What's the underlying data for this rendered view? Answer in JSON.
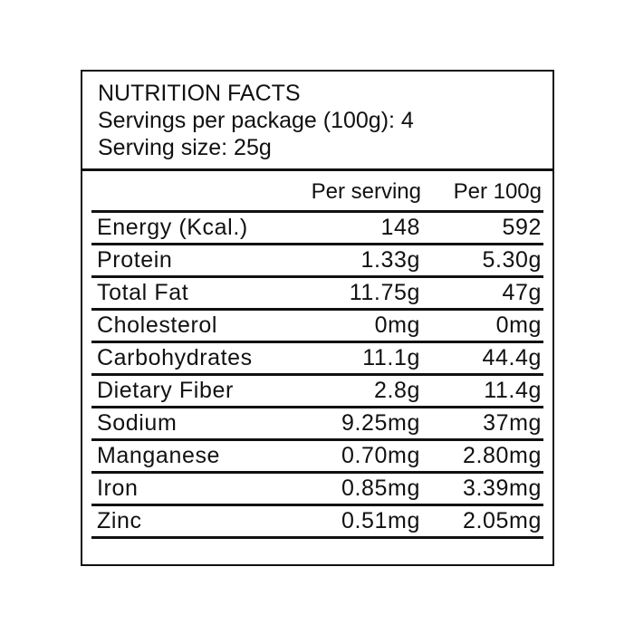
{
  "label": {
    "title": "NUTRITION FACTS",
    "servings_per_package": "Servings per package (100g): 4",
    "serving_size": "Serving size: 25g",
    "columns": [
      "Per serving",
      "Per 100g"
    ],
    "rows": [
      {
        "name": "Energy (Kcal.)",
        "per_serving": "148",
        "per_100g": "592"
      },
      {
        "name": "Protein",
        "per_serving": "1.33g",
        "per_100g": "5.30g"
      },
      {
        "name": "Total Fat",
        "per_serving": "11.75g",
        "per_100g": "47g"
      },
      {
        "name": "Cholesterol",
        "per_serving": "0mg",
        "per_100g": "0mg"
      },
      {
        "name": "Carbohydrates",
        "per_serving": "11.1g",
        "per_100g": "44.4g"
      },
      {
        "name": "Dietary Fiber",
        "per_serving": "2.8g",
        "per_100g": "11.4g"
      },
      {
        "name": "Sodium",
        "per_serving": "9.25mg",
        "per_100g": "37mg"
      },
      {
        "name": "Manganese",
        "per_serving": "0.70mg",
        "per_100g": "2.80mg"
      },
      {
        "name": "Iron",
        "per_serving": "0.85mg",
        "per_100g": "3.39mg"
      },
      {
        "name": "Zinc",
        "per_serving": "0.51mg",
        "per_100g": "2.05mg"
      }
    ]
  }
}
